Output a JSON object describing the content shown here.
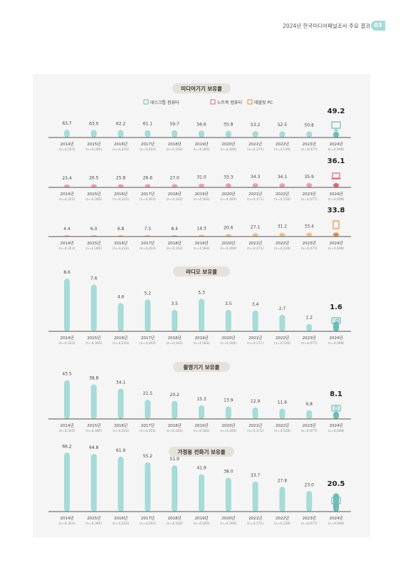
{
  "header": {
    "title": "2024년 한국미디어패널조사 주요 결과",
    "page_number": "03"
  },
  "years": [
    "2014년",
    "2015년",
    "2016년",
    "2017년",
    "2018년",
    "2019년",
    "2020년",
    "2021년",
    "2022년",
    "2023년",
    "2024년"
  ],
  "samples": [
    "(n=4,313)",
    "(n=4,385)",
    "(n=4,233)",
    "(n=4,203)",
    "(n=4,162)",
    "(n=4,583)",
    "(n=4,260)",
    "(n=4,171)",
    "(n=4,128)",
    "(n=4,077)",
    "(n=4,008)"
  ],
  "colors": {
    "teal": "#a6dbd8",
    "teal_dark": "#6cbcb9",
    "pink": "#e8a3ae",
    "pink_dark": "#d9697c",
    "orange": "#f1c08d",
    "orange_dark": "#e08f47",
    "axis": "#555555",
    "title_pill": "#e5e1db"
  },
  "chart_data": [
    {
      "type": "bar",
      "title": "미디어기기 보유율",
      "legend": [
        "데스크톱 컴퓨터",
        "노트북 컴퓨터",
        "태블릿 PC"
      ],
      "series": [
        {
          "name": "데스크톱 컴퓨터",
          "icon": "desktop-icon",
          "values": [
            63.7,
            63.0,
            62.2,
            61.1,
            59.7,
            56.6,
            55.8,
            53.2,
            52.5,
            50.8,
            49.2
          ]
        },
        {
          "name": "노트북 컴퓨터",
          "icon": "laptop-icon",
          "values": [
            23.4,
            26.5,
            25.8,
            26.6,
            27.0,
            31.0,
            33.3,
            34.3,
            34.1,
            35.9,
            36.1
          ]
        },
        {
          "name": "태블릿 PC",
          "icon": "tablet-icon",
          "values": [
            4.4,
            6.0,
            6.8,
            7.5,
            8.4,
            14.3,
            20.6,
            27.1,
            31.2,
            33.4,
            33.8
          ]
        }
      ]
    },
    {
      "type": "bar",
      "title": "라디오 보유율",
      "icon": "radio-icon",
      "values": [
        8.6,
        7.6,
        4.6,
        5.2,
        3.5,
        5.3,
        3.5,
        3.4,
        2.7,
        1.2,
        1.6
      ]
    },
    {
      "type": "bar",
      "title": "촬영기기 보유율",
      "icon": "camera-icon",
      "values": [
        43.5,
        38.8,
        34.1,
        21.5,
        20.2,
        15.3,
        13.9,
        12.9,
        11.6,
        9.8,
        8.1
      ]
    },
    {
      "type": "bar",
      "title": "가정용 전화기 보유율",
      "icon": "phone-icon",
      "values": [
        66.2,
        64.8,
        61.6,
        55.2,
        51.9,
        41.9,
        38.0,
        33.7,
        27.8,
        23.0,
        20.5
      ]
    }
  ]
}
